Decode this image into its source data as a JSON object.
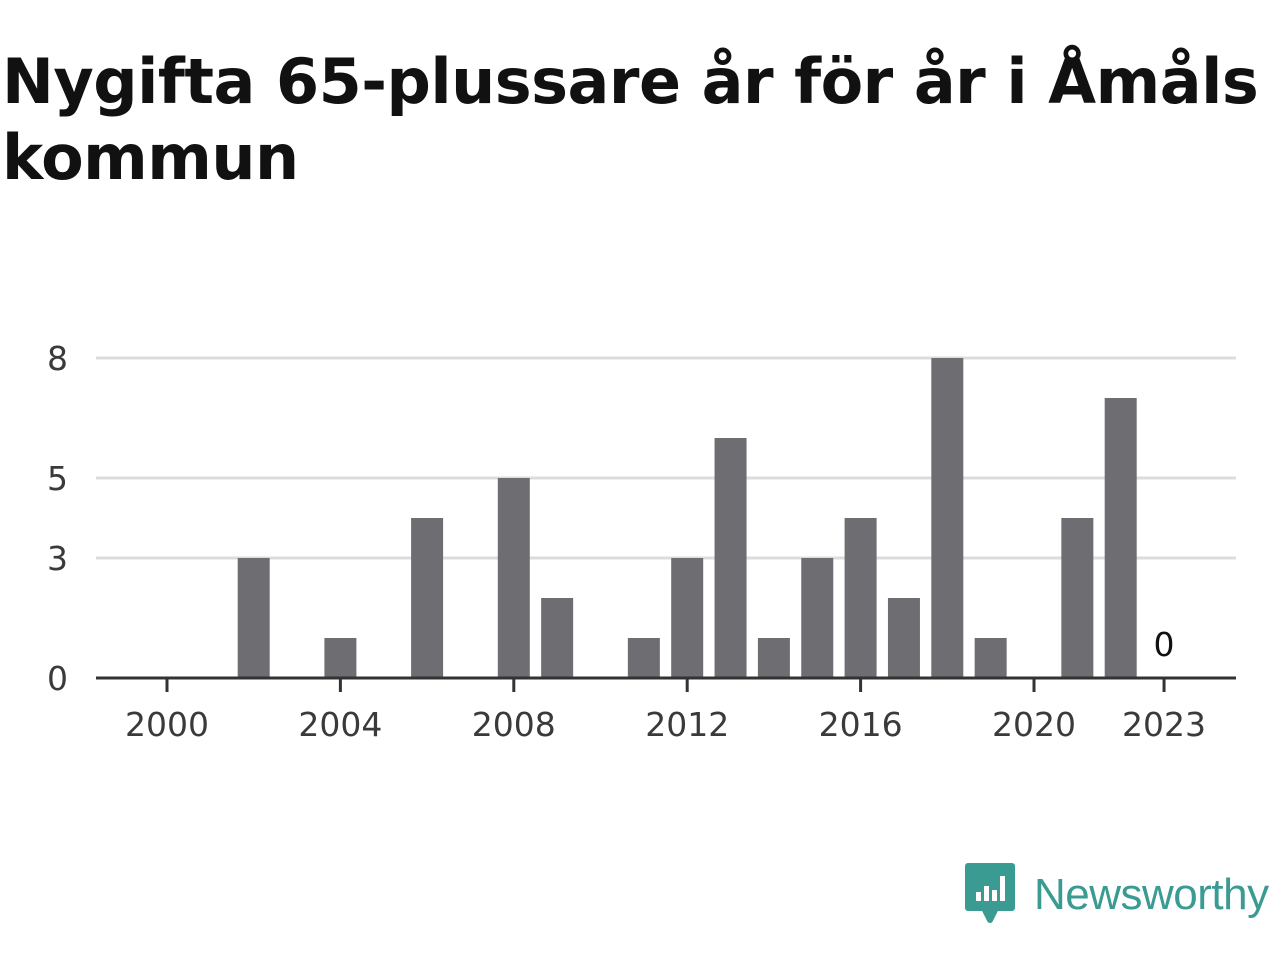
{
  "title": "Nygifta 65-plussare år för år i Åmåls kommun",
  "brand": {
    "name": "Newsworthy",
    "icon": "newsworthy-logo-icon",
    "color": "#3a9b92"
  },
  "chart_data": {
    "type": "bar",
    "title": "Nygifta 65-plussare år för år i Åmåls kommun",
    "xlabel": "",
    "ylabel": "",
    "x": [
      2000,
      2001,
      2002,
      2003,
      2004,
      2005,
      2006,
      2007,
      2008,
      2009,
      2010,
      2011,
      2012,
      2013,
      2014,
      2015,
      2016,
      2017,
      2018,
      2019,
      2020,
      2021,
      2022,
      2023
    ],
    "values": [
      0,
      0,
      3,
      0,
      1,
      0,
      4,
      0,
      5,
      2,
      0,
      1,
      3,
      6,
      1,
      3,
      4,
      2,
      8,
      1,
      0,
      4,
      7,
      0
    ],
    "x_tick_labels": [
      "2000",
      "2004",
      "2008",
      "2012",
      "2016",
      "2020",
      "2023"
    ],
    "y_tick_labels": [
      "0",
      "3",
      "5",
      "8"
    ],
    "ylim": [
      0,
      8
    ],
    "grid": true,
    "bar_color": "#6e6d72",
    "annotations": [
      {
        "x": 2023,
        "text": "0"
      }
    ]
  }
}
